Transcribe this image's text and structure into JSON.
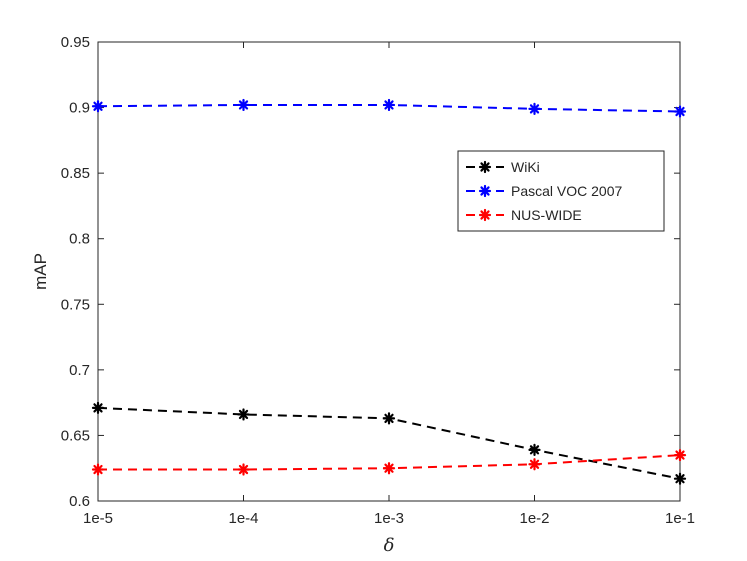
{
  "chart_data": {
    "type": "line",
    "categories": [
      "1e-5",
      "1e-4",
      "1e-3",
      "1e-2",
      "1e-1"
    ],
    "xlabel": "δ",
    "ylabel": "mAP",
    "ylim": [
      0.6,
      0.95
    ],
    "yticks": [
      "0.6",
      "0.65",
      "0.7",
      "0.75",
      "0.8",
      "0.85",
      "0.9",
      "0.95"
    ],
    "grid": false,
    "legend_position": "upper-right",
    "series": [
      {
        "name": "WiKi",
        "color": "#000000",
        "marker": "asterisk",
        "line_style": "dashed",
        "values": [
          0.671,
          0.666,
          0.663,
          0.639,
          0.617
        ]
      },
      {
        "name": "Pascal VOC 2007",
        "color": "#0000ff",
        "marker": "asterisk",
        "line_style": "dashed",
        "values": [
          0.901,
          0.902,
          0.902,
          0.899,
          0.897
        ]
      },
      {
        "name": "NUS-WIDE",
        "color": "#ff0000",
        "marker": "asterisk",
        "line_style": "dashed",
        "values": [
          0.624,
          0.624,
          0.625,
          0.628,
          0.635
        ]
      }
    ]
  }
}
